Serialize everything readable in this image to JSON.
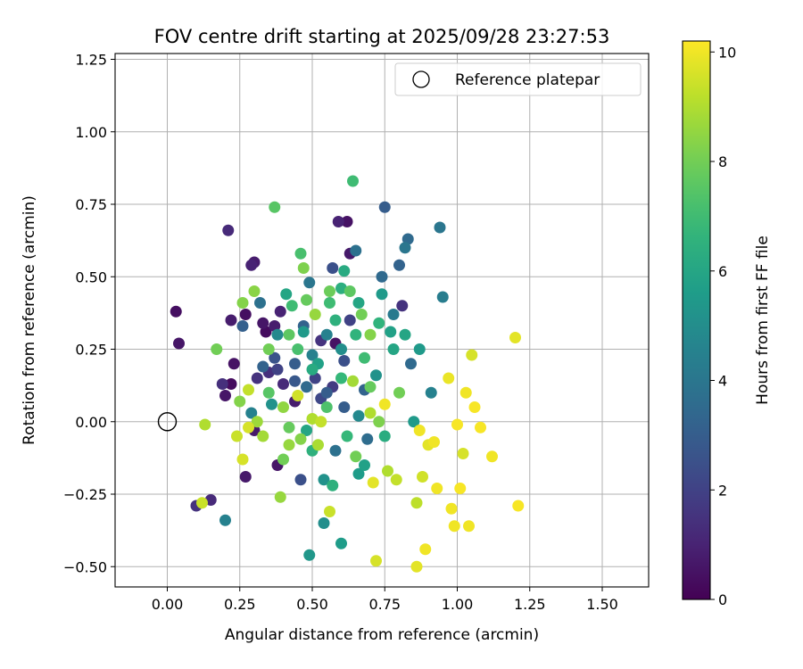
{
  "chart_data": {
    "type": "scatter",
    "title": "FOV centre drift starting at 2025/09/28 23:27:53",
    "xlabel": "Angular distance from reference (arcmin)",
    "ylabel": "Rotation from reference (arcmin)",
    "xlim": [
      -0.18,
      1.66
    ],
    "ylim": [
      -0.57,
      1.27
    ],
    "xticks": [
      0.0,
      0.25,
      0.5,
      0.75,
      1.0,
      1.25,
      1.5
    ],
    "xtick_labels": [
      "0.00",
      "0.25",
      "0.50",
      "0.75",
      "1.00",
      "1.25",
      "1.50"
    ],
    "yticks": [
      -0.5,
      -0.25,
      0.0,
      0.25,
      0.5,
      0.75,
      1.0,
      1.25
    ],
    "ytick_labels": [
      "−0.50",
      "−0.25",
      "0.00",
      "0.25",
      "0.50",
      "0.75",
      "1.00",
      "1.25"
    ],
    "grid": true,
    "legend": {
      "label": "Reference platepar",
      "position": "top-right"
    },
    "reference_point": {
      "x": 0.0,
      "y": 0.0
    },
    "colorbar": {
      "label": "Hours from first FF file",
      "range": [
        0,
        10.2
      ],
      "ticks": [
        0,
        2,
        4,
        6,
        8,
        10
      ],
      "tick_labels": [
        "0",
        "2",
        "4",
        "6",
        "8",
        "10"
      ],
      "colormap": "viridis"
    },
    "points": [
      [
        0.03,
        0.38,
        0.4
      ],
      [
        0.04,
        0.27,
        0.6
      ],
      [
        0.1,
        -0.29,
        1.5
      ],
      [
        0.12,
        -0.28,
        9.4
      ],
      [
        0.13,
        -0.01,
        9.0
      ],
      [
        0.15,
        -0.27,
        1.2
      ],
      [
        0.17,
        0.25,
        8.0
      ],
      [
        0.19,
        0.13,
        1.4
      ],
      [
        0.2,
        -0.34,
        4.5
      ],
      [
        0.2,
        0.09,
        0.6
      ],
      [
        0.21,
        0.66,
        1.2
      ],
      [
        0.22,
        0.35,
        0.8
      ],
      [
        0.22,
        0.13,
        0.3
      ],
      [
        0.23,
        0.2,
        0.5
      ],
      [
        0.24,
        -0.05,
        9.4
      ],
      [
        0.26,
        -0.13,
        9.6
      ],
      [
        0.26,
        0.41,
        8.3
      ],
      [
        0.26,
        0.33,
        3.1
      ],
      [
        0.27,
        0.37,
        0.4
      ],
      [
        0.27,
        -0.19,
        0.7
      ],
      [
        0.28,
        0.11,
        9.3
      ],
      [
        0.28,
        -0.02,
        9.6
      ],
      [
        0.29,
        0.03,
        4.5
      ],
      [
        0.29,
        0.54,
        1.0
      ],
      [
        0.3,
        0.55,
        0.8
      ],
      [
        0.3,
        0.45,
        8.4
      ],
      [
        0.3,
        -0.03,
        0.7
      ],
      [
        0.31,
        0.0,
        8.7
      ],
      [
        0.32,
        0.41,
        3.8
      ],
      [
        0.33,
        0.19,
        3.2
      ],
      [
        0.33,
        0.34,
        0.6
      ],
      [
        0.34,
        0.31,
        0.3
      ],
      [
        0.35,
        0.25,
        8.0
      ],
      [
        0.35,
        0.17,
        1.4
      ],
      [
        0.36,
        0.06,
        5.2
      ],
      [
        0.37,
        0.74,
        7.5
      ],
      [
        0.37,
        0.33,
        0.8
      ],
      [
        0.38,
        -0.15,
        0.6
      ],
      [
        0.38,
        0.18,
        2.0
      ],
      [
        0.39,
        -0.26,
        8.6
      ],
      [
        0.39,
        0.38,
        1.0
      ],
      [
        0.4,
        0.13,
        1.2
      ],
      [
        0.4,
        -0.13,
        8.0
      ],
      [
        0.41,
        0.44,
        6.0
      ],
      [
        0.42,
        0.3,
        7.6
      ],
      [
        0.43,
        0.4,
        7.0
      ],
      [
        0.44,
        0.2,
        3.0
      ],
      [
        0.44,
        0.07,
        0.8
      ],
      [
        0.45,
        0.09,
        9.5
      ],
      [
        0.46,
        0.58,
        7.2
      ],
      [
        0.46,
        -0.2,
        2.5
      ],
      [
        0.47,
        0.31,
        5.5
      ],
      [
        0.47,
        0.53,
        8.2
      ],
      [
        0.48,
        0.12,
        3.5
      ],
      [
        0.48,
        -0.03,
        6.0
      ],
      [
        0.49,
        0.48,
        4.0
      ],
      [
        0.49,
        -0.46,
        5.4
      ],
      [
        0.5,
        0.01,
        9.0
      ],
      [
        0.5,
        0.23,
        4.5
      ],
      [
        0.51,
        0.15,
        2.0
      ],
      [
        0.51,
        0.37,
        8.6
      ],
      [
        0.52,
        -0.08,
        8.9
      ],
      [
        0.53,
        0.28,
        1.5
      ],
      [
        0.53,
        0.0,
        9.3
      ],
      [
        0.54,
        -0.35,
        5.0
      ],
      [
        0.54,
        -0.2,
        5.2
      ],
      [
        0.55,
        0.1,
        3.0
      ],
      [
        0.56,
        0.41,
        7.0
      ],
      [
        0.56,
        -0.31,
        9.4
      ],
      [
        0.57,
        -0.22,
        6.5
      ],
      [
        0.57,
        0.53,
        2.5
      ],
      [
        0.58,
        0.27,
        0.5
      ],
      [
        0.59,
        0.69,
        1.0
      ],
      [
        0.6,
        0.46,
        6.4
      ],
      [
        0.6,
        -0.42,
        5.6
      ],
      [
        0.61,
        0.21,
        2.5
      ],
      [
        0.61,
        0.05,
        3.0
      ],
      [
        0.62,
        0.69,
        0.5
      ],
      [
        0.63,
        0.58,
        0.7
      ],
      [
        0.64,
        0.83,
        7.0
      ],
      [
        0.64,
        0.14,
        8.8
      ],
      [
        0.65,
        0.59,
        3.8
      ],
      [
        0.65,
        0.3,
        6.6
      ],
      [
        0.66,
        -0.18,
        5.6
      ],
      [
        0.66,
        0.41,
        6.0
      ],
      [
        0.67,
        0.37,
        8.0
      ],
      [
        0.68,
        0.11,
        3.2
      ],
      [
        0.69,
        -0.06,
        3.6
      ],
      [
        0.7,
        0.3,
        8.3
      ],
      [
        0.7,
        0.03,
        9.0
      ],
      [
        0.71,
        -0.21,
        9.8
      ],
      [
        0.72,
        -0.48,
        9.6
      ],
      [
        0.73,
        0.34,
        6.6
      ],
      [
        0.74,
        0.5,
        3.5
      ],
      [
        0.74,
        0.44,
        5.5
      ],
      [
        0.75,
        0.74,
        3.0
      ],
      [
        0.75,
        0.06,
        10.0
      ],
      [
        0.76,
        -0.17,
        9.0
      ],
      [
        0.77,
        0.31,
        5.8
      ],
      [
        0.78,
        0.37,
        4.2
      ],
      [
        0.79,
        -0.2,
        9.3
      ],
      [
        0.8,
        0.54,
        3.2
      ],
      [
        0.81,
        0.4,
        1.5
      ],
      [
        0.82,
        0.6,
        4.0
      ],
      [
        0.83,
        0.63,
        3.5
      ],
      [
        0.84,
        0.2,
        3.5
      ],
      [
        0.85,
        0.0,
        5.5
      ],
      [
        0.86,
        -0.28,
        9.2
      ],
      [
        0.86,
        -0.5,
        9.8
      ],
      [
        0.87,
        -0.03,
        10.0
      ],
      [
        0.88,
        -0.19,
        9.5
      ],
      [
        0.89,
        -0.44,
        10.0
      ],
      [
        0.9,
        -0.08,
        9.8
      ],
      [
        0.91,
        0.1,
        4.5
      ],
      [
        0.92,
        -0.07,
        10.0
      ],
      [
        0.93,
        -0.23,
        10.0
      ],
      [
        0.94,
        0.67,
        4.0
      ],
      [
        0.95,
        0.43,
        4.3
      ],
      [
        0.97,
        0.15,
        9.9
      ],
      [
        0.98,
        -0.3,
        10.0
      ],
      [
        0.99,
        -0.36,
        10.0
      ],
      [
        1.0,
        -0.01,
        10.1
      ],
      [
        1.01,
        -0.23,
        10.1
      ],
      [
        1.02,
        -0.11,
        9.6
      ],
      [
        1.03,
        0.1,
        10.0
      ],
      [
        1.04,
        -0.36,
        10.0
      ],
      [
        1.05,
        0.23,
        9.6
      ],
      [
        1.06,
        0.05,
        10.1
      ],
      [
        1.08,
        -0.02,
        10.1
      ],
      [
        1.12,
        -0.12,
        10.0
      ],
      [
        1.2,
        0.29,
        9.8
      ],
      [
        1.21,
        -0.29,
        10.1
      ],
      [
        0.35,
        0.1,
        7.5
      ],
      [
        0.42,
        -0.02,
        7.8
      ],
      [
        0.55,
        0.05,
        7.3
      ],
      [
        0.6,
        0.15,
        6.8
      ],
      [
        0.5,
        -0.1,
        6.5
      ],
      [
        0.45,
        0.25,
        7.2
      ],
      [
        0.62,
        -0.05,
        6.8
      ],
      [
        0.58,
        0.35,
        6.5
      ],
      [
        0.68,
        0.22,
        7.0
      ],
      [
        0.7,
        0.12,
        7.8
      ],
      [
        0.4,
        0.05,
        8.5
      ],
      [
        0.52,
        0.2,
        5.8
      ],
      [
        0.33,
        -0.05,
        8.8
      ],
      [
        0.46,
        -0.06,
        8.3
      ],
      [
        0.65,
        -0.12,
        8.0
      ],
      [
        0.73,
        0.0,
        8.2
      ],
      [
        0.8,
        0.1,
        8.0
      ],
      [
        0.63,
        0.45,
        7.6
      ],
      [
        0.48,
        0.42,
        7.8
      ],
      [
        0.38,
        0.3,
        4.8
      ],
      [
        0.25,
        0.07,
        8.3
      ],
      [
        0.55,
        0.3,
        4.5
      ],
      [
        0.6,
        0.25,
        5.0
      ],
      [
        0.5,
        0.18,
        6.2
      ],
      [
        0.44,
        0.14,
        2.8
      ],
      [
        0.58,
        -0.1,
        3.8
      ],
      [
        0.66,
        0.02,
        4.8
      ],
      [
        0.72,
        0.16,
        5.2
      ],
      [
        0.78,
        0.25,
        6.0
      ],
      [
        0.57,
        0.12,
        1.8
      ],
      [
        0.53,
        0.08,
        2.2
      ],
      [
        0.47,
        0.33,
        3.2
      ],
      [
        0.63,
        0.35,
        2.0
      ],
      [
        0.42,
        -0.08,
        8.6
      ],
      [
        0.31,
        0.15,
        1.5
      ],
      [
        0.37,
        0.22,
        2.6
      ],
      [
        0.68,
        -0.15,
        5.8
      ],
      [
        0.75,
        -0.05,
        6.3
      ],
      [
        0.82,
        0.3,
        6.0
      ],
      [
        0.87,
        0.25,
        5.5
      ],
      [
        0.61,
        0.52,
        6.2
      ],
      [
        0.56,
        0.45,
        7.9
      ]
    ]
  }
}
